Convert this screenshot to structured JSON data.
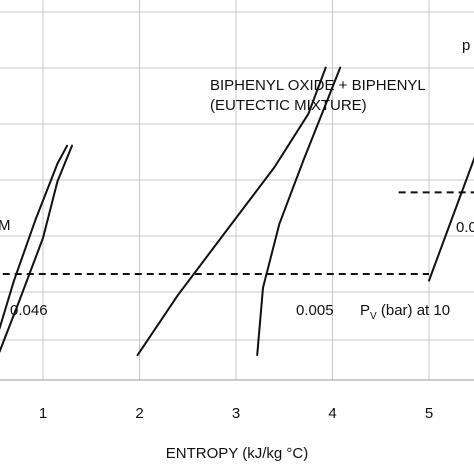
{
  "chart_data": {
    "type": "line",
    "title": "",
    "xlabel": "ENTROPY (kJ/kg °C)",
    "ylabel": "",
    "xlim": [
      0.5,
      5.8
    ],
    "x_ticks": [
      1,
      2,
      3,
      4,
      5
    ],
    "x_tick_labels": [
      "1",
      "2",
      "3",
      "4",
      "5"
    ],
    "grid": true,
    "legend": "none",
    "series": [
      {
        "name": "",
        "x": [
          0.5,
          0.7,
          0.92,
          1.15,
          1.25
        ],
        "y": [
          0.1,
          0.28,
          0.45,
          0.61,
          0.66
        ]
      },
      {
        "name": "",
        "x": [
          0.55,
          0.75,
          1.0,
          1.15,
          1.3
        ],
        "y": [
          0.08,
          0.22,
          0.4,
          0.56,
          0.66
        ]
      },
      {
        "name": "",
        "x": [
          1.98,
          2.4,
          2.9,
          3.4,
          3.75,
          3.93
        ],
        "y": [
          0.07,
          0.24,
          0.42,
          0.6,
          0.75,
          0.88
        ]
      },
      {
        "name": "",
        "x": [
          3.22,
          3.28,
          3.45,
          3.7,
          3.92,
          4.08
        ],
        "y": [
          0.07,
          0.26,
          0.44,
          0.62,
          0.77,
          0.88
        ]
      },
      {
        "name": "",
        "x": [
          5.0,
          5.3,
          5.6
        ],
        "y": [
          0.28,
          0.5,
          0.72
        ]
      }
    ],
    "reference_lines": [
      {
        "label": "0.046",
        "x_start": 0.5,
        "x_end": 5.0,
        "y": 0.15
      },
      {
        "label": "0.005",
        "x_start": 0.5,
        "x_end": 5.0,
        "y": 0.15
      },
      {
        "label": "0.0",
        "x_start": 5.1,
        "x_end": 5.8,
        "y": 0.38
      }
    ],
    "annotations": [
      {
        "text": "BIPHENYL OXIDE + BIPHENYL"
      },
      {
        "text": "(EUTECTIC MIXTURE)"
      },
      {
        "text": "0.046"
      },
      {
        "text": "0.005"
      },
      {
        "text": "0.0"
      },
      {
        "text": "M"
      },
      {
        "text": "p"
      }
    ],
    "pv_label": {
      "main": "P",
      "sub": "V",
      "rest": " (bar) at 10"
    }
  }
}
